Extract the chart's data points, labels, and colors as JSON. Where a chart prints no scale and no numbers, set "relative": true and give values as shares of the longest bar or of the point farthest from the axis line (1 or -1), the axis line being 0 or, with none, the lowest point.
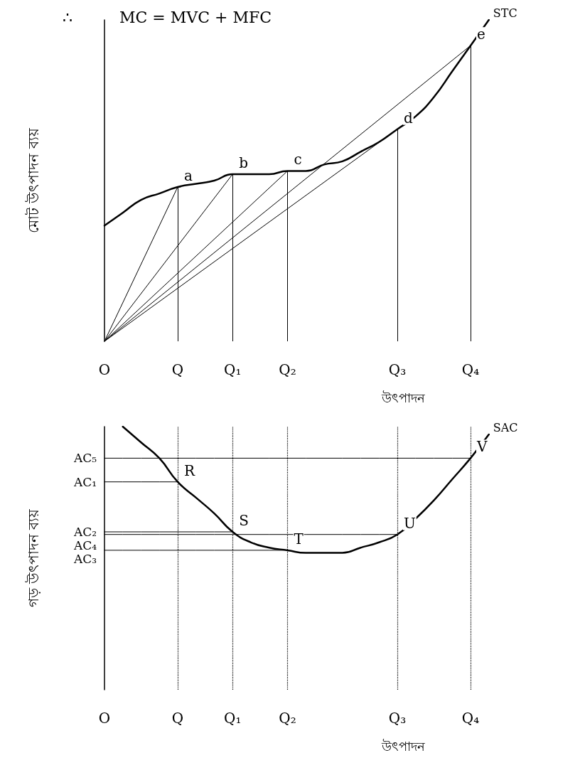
{
  "chart_data": [
    {
      "type": "line",
      "relative": true,
      "title": "MC = MVC + MFC",
      "ylabel": "মোট উৎপাদন ব্যয়",
      "xlabel": "উৎপাদন",
      "categories": [
        "O",
        null,
        null,
        null,
        "Q",
        null,
        null,
        "Q₁",
        null,
        null,
        "Q₂",
        null,
        null,
        null,
        null,
        null,
        "Q₃",
        null,
        null,
        null,
        "Q₄",
        null
      ],
      "series": [
        {
          "name": "STC",
          "color": "#000000",
          "values": [
            0.36,
            0.4,
            0.44,
            0.46,
            0.48,
            0.49,
            0.5,
            0.52,
            0.52,
            0.52,
            0.53,
            0.53,
            0.55,
            0.56,
            0.59,
            0.62,
            0.66,
            0.7,
            0.76,
            0.84,
            0.92,
            1
          ]
        },
        {
          "color": "#000000",
          "values": [
            0,
            null,
            null,
            null,
            0.48,
            null,
            null,
            null,
            null,
            null,
            null,
            null,
            null,
            null,
            null,
            null,
            null,
            null,
            null,
            null,
            null,
            null
          ]
        },
        {
          "color": "#000000",
          "values": [
            0,
            null,
            null,
            null,
            null,
            null,
            null,
            0.52,
            null,
            null,
            null,
            null,
            null,
            null,
            null,
            null,
            null,
            null,
            null,
            null,
            null,
            null
          ]
        },
        {
          "color": "#000000",
          "values": [
            0,
            null,
            null,
            null,
            null,
            null,
            null,
            null,
            null,
            null,
            0.53,
            null,
            null,
            null,
            null,
            null,
            null,
            null,
            null,
            null,
            null,
            null
          ]
        },
        {
          "color": "#000000",
          "values": [
            0,
            null,
            null,
            null,
            null,
            null,
            null,
            null,
            null,
            null,
            null,
            null,
            null,
            null,
            null,
            null,
            0.66,
            null,
            null,
            null,
            null,
            null
          ]
        },
        {
          "color": "#000000",
          "values": [
            0,
            null,
            null,
            null,
            null,
            null,
            null,
            null,
            null,
            null,
            null,
            null,
            null,
            null,
            null,
            null,
            null,
            null,
            null,
            null,
            0.92,
            null
          ]
        }
      ],
      "annotations": [
        "∴",
        {
          "text": "a",
          "x": "Q",
          "y": 0.48
        },
        {
          "text": "b",
          "x": "Q₁",
          "y": 0.52
        },
        {
          "text": "c",
          "x": "Q₂",
          "y": 0.53
        },
        {
          "text": "d",
          "x": "Q₃",
          "y": 0.66
        },
        {
          "text": "e",
          "x": "Q₄",
          "y": 0.92
        }
      ]
    },
    {
      "type": "line",
      "relative": true,
      "ylabel": "গড় উৎপাদন ব্যয়",
      "xlabel": "উৎপাদন",
      "categories": [
        "O",
        null,
        null,
        null,
        "Q",
        null,
        null,
        "Q₁",
        null,
        null,
        "Q₂",
        null,
        null,
        null,
        null,
        null,
        "Q₃",
        null,
        null,
        null,
        "Q₄",
        null
      ],
      "series": [
        {
          "name": "SAC",
          "color": "#000000",
          "values": [
            null,
            1.0,
            0.94,
            0.88,
            0.79,
            0.73,
            0.67,
            0.6,
            0.56,
            0.54,
            0.53,
            0.52,
            0.52,
            0.52,
            0.54,
            0.56,
            0.59,
            0.65,
            0.72,
            0.8,
            0.88,
            0.97
          ]
        },
        {
          "color": "#000000",
          "values": [
            0.88,
            0.88,
            0.88,
            0.88,
            0.88,
            0.88,
            0.88,
            0.88,
            0.88,
            0.88,
            0.88,
            0.88,
            0.88,
            0.88,
            0.88,
            0.88,
            0.88,
            0.88,
            0.88,
            0.88,
            0.88,
            null
          ]
        },
        {
          "color": "#000000",
          "values": [
            0.79,
            0.79,
            0.79,
            0.79,
            0.79,
            null,
            null,
            null,
            null,
            null,
            null,
            null,
            null,
            null,
            null,
            null,
            null,
            null,
            null,
            null,
            null,
            null
          ]
        },
        {
          "color": "#000000",
          "values": [
            0.6,
            0.6,
            0.6,
            0.6,
            0.6,
            0.6,
            0.6,
            0.6,
            null,
            null,
            null,
            null,
            null,
            null,
            null,
            null,
            null,
            null,
            null,
            null,
            null,
            null
          ]
        },
        {
          "color": "#000000",
          "values": [
            0.59,
            0.59,
            0.59,
            0.59,
            0.59,
            0.59,
            0.59,
            0.59,
            0.59,
            0.59,
            0.59,
            0.59,
            0.59,
            0.59,
            0.59,
            0.59,
            0.59,
            null,
            null,
            null,
            null,
            null
          ]
        },
        {
          "color": "#000000",
          "values": [
            0.53,
            0.53,
            0.53,
            0.53,
            0.53,
            0.53,
            0.53,
            0.53,
            0.53,
            0.53,
            0.53,
            null,
            null,
            null,
            null,
            null,
            null,
            null,
            null,
            null,
            null,
            null
          ]
        }
      ],
      "ref_lines": [
        {
          "axis": "x",
          "value": "Q",
          "line_style": "dotted"
        },
        {
          "axis": "x",
          "value": "Q₁",
          "line_style": "dotted"
        },
        {
          "axis": "x",
          "value": "Q₂",
          "line_style": "dotted"
        },
        {
          "axis": "x",
          "value": "Q₃",
          "line_style": "dotted"
        },
        {
          "axis": "x",
          "value": "Q₄",
          "line_style": "dotted"
        }
      ],
      "annotations": [
        {
          "text": "AC₅",
          "x": "O",
          "y": 0.88
        },
        {
          "text": "AC₁",
          "x": "O",
          "y": 0.79
        },
        {
          "text": "AC₂",
          "x": "O",
          "y": 0.6
        },
        {
          "text": "AC₄",
          "x": "O",
          "y": 0.59
        },
        {
          "text": "AC₃",
          "x": "O",
          "y": 0.53
        },
        {
          "text": "R",
          "x": "Q",
          "y": 0.79
        },
        {
          "text": "S",
          "x": "Q₁",
          "y": 0.6
        },
        {
          "text": "T",
          "x": "Q₂",
          "y": 0.53
        },
        {
          "text": "U",
          "x": "Q₃",
          "y": 0.59
        },
        {
          "text": "V",
          "x": "Q₄",
          "y": 0.88
        }
      ]
    }
  ]
}
